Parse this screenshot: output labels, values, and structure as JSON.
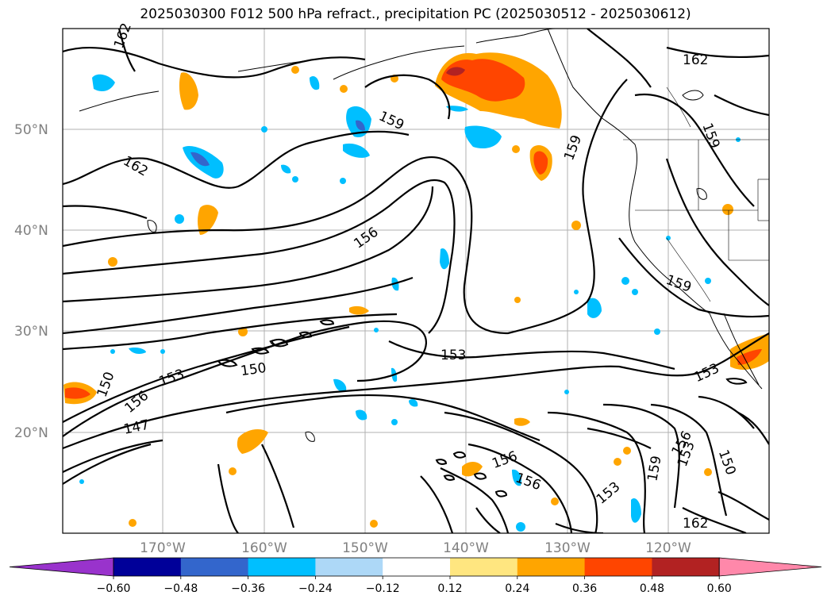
{
  "title": "2025030300 F012 500 hPa refract., precipitation PC (2025030512 - 2025030612)",
  "map": {
    "lat_labels": [
      "50°N",
      "40°N",
      "30°N",
      "20°N"
    ],
    "lon_labels": [
      "170°W",
      "160°W",
      "150°W",
      "140°W",
      "130°W",
      "120°W"
    ],
    "contour_labels": [
      "162",
      "159",
      "156",
      "153",
      "150",
      "147",
      "162",
      "159",
      "159",
      "159",
      "156",
      "153",
      "150",
      "153",
      "150",
      "153",
      "156",
      "156",
      "153",
      "159",
      "156",
      "153",
      "150",
      "162",
      "162"
    ]
  },
  "colorbar": {
    "ticks": [
      "−0.60",
      "−0.48",
      "−0.36",
      "−0.24",
      "−0.12",
      "0.12",
      "0.24",
      "0.36",
      "0.48",
      "0.60"
    ],
    "colors": [
      "#9933cc",
      "#000099",
      "#3366cc",
      "#00bfff",
      "#add8f7",
      "#ffffff",
      "#ffe680",
      "#ffa500",
      "#ff4500",
      "#b22222",
      "#ff88aa"
    ]
  }
}
